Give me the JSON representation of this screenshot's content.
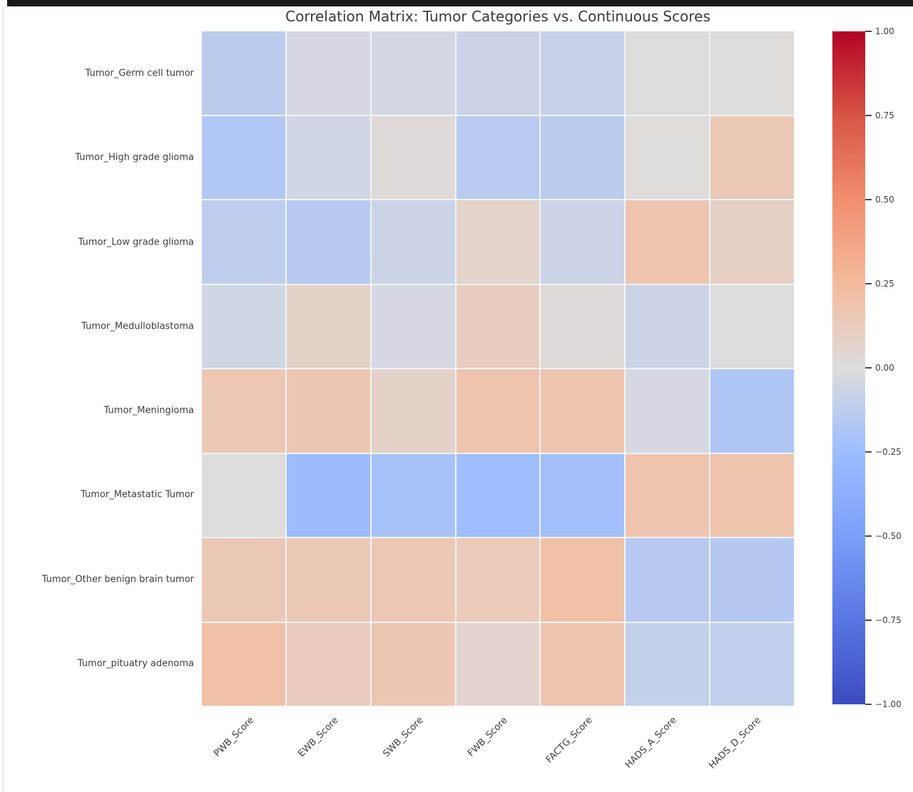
{
  "window": {
    "top_bar_color": "#1b1b1b",
    "background_color": "#ffffff"
  },
  "chart_data": {
    "type": "heatmap",
    "title": "Correlation Matrix: Tumor Categories vs. Continuous Scores",
    "rows": [
      "Tumor_Germ cell tumor",
      "Tumor_High grade glioma",
      "Tumor_Low grade glioma",
      "Tumor_Medulloblastoma",
      "Tumor_Meningioma",
      "Tumor_Metastatic Tumor",
      "Tumor_Other benign brain tumor",
      "Tumor_pituatry adenoma"
    ],
    "columns": [
      "PWB_Score",
      "EWB_Score",
      "SWB_Score",
      "FWB_Score",
      "FACTG_Score",
      "HADS_A_Score",
      "HADS_D_Score"
    ],
    "values": [
      [
        -0.13,
        -0.03,
        -0.04,
        -0.08,
        -0.09,
        0.0,
        0.01
      ],
      [
        -0.17,
        -0.05,
        0.02,
        -0.14,
        -0.13,
        0.01,
        0.15
      ],
      [
        -0.12,
        -0.15,
        -0.07,
        0.07,
        -0.07,
        0.18,
        0.1
      ],
      [
        -0.05,
        0.08,
        -0.03,
        0.12,
        0.02,
        -0.07,
        0.0
      ],
      [
        0.16,
        0.17,
        0.08,
        0.19,
        0.18,
        -0.03,
        -0.18
      ],
      [
        0.0,
        -0.26,
        -0.21,
        -0.25,
        -0.23,
        0.18,
        0.19
      ],
      [
        0.15,
        0.15,
        0.16,
        0.14,
        0.21,
        -0.15,
        -0.16
      ],
      [
        0.21,
        0.13,
        0.17,
        0.06,
        0.18,
        -0.1,
        -0.11
      ]
    ],
    "vmin": -1.0,
    "vmax": 1.0,
    "colormap": "coolwarm",
    "colormap_stops": [
      [
        -1.0,
        [
          59,
          76,
          192
        ]
      ],
      [
        -0.75,
        [
          88,
          118,
          226
        ]
      ],
      [
        -0.5,
        [
          123,
          159,
          249
        ]
      ],
      [
        -0.25,
        [
          157,
          189,
          255
        ]
      ],
      [
        0.0,
        [
          221,
          220,
          220
        ]
      ],
      [
        0.25,
        [
          244,
          187,
          157
        ]
      ],
      [
        0.5,
        [
          241,
          142,
          110
        ]
      ],
      [
        0.75,
        [
          215,
          84,
          68
        ]
      ],
      [
        1.0,
        [
          180,
          4,
          38
        ]
      ]
    ],
    "colorbar_ticks": [
      1.0,
      0.75,
      0.5,
      0.25,
      0.0,
      -0.25,
      -0.5,
      -0.75,
      -1.0
    ],
    "grid_color": "#f1f4f8",
    "legend_position": "right-colorbar",
    "xlabel": "",
    "ylabel": ""
  },
  "layout_text_colors": {
    "title": "#3a3a3a",
    "tick_labels": "#3d3d3d"
  }
}
